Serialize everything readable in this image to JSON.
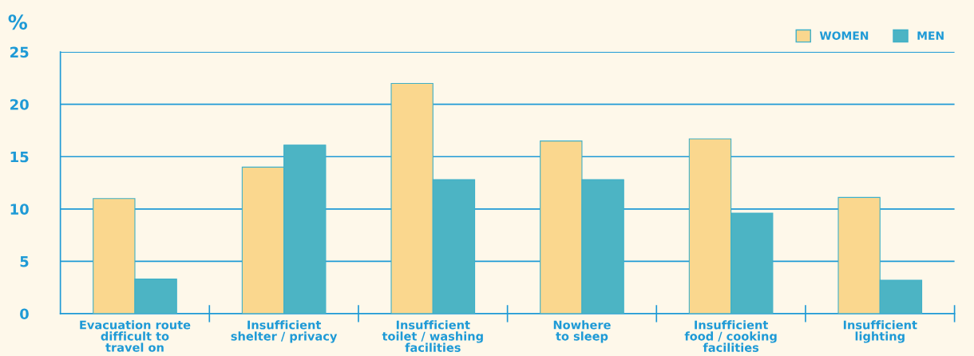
{
  "chart_data": {
    "type": "bar",
    "ylabel": "%",
    "categories": [
      "Evacuation route\ndifficult to\ntravel on",
      "Insufficient\nshelter / privacy",
      "Insufficient\ntoilet / washing\nfacilities",
      "Nowhere\nto sleep",
      "Insufficient\nfood / cooking\nfacilities",
      "Insufficient\nlighting"
    ],
    "series": [
      {
        "name": "WOMEN",
        "color": "#fad78e",
        "values": [
          11.0,
          14.0,
          22.0,
          16.5,
          16.7,
          11.1
        ]
      },
      {
        "name": "MEN",
        "color": "#4cb4c4",
        "values": [
          3.3,
          16.1,
          12.8,
          12.8,
          9.6,
          3.2
        ]
      }
    ],
    "ylim": [
      0,
      25
    ],
    "yticks": [
      0,
      5,
      10,
      15,
      20,
      25
    ],
    "grid": "y",
    "legend": "top right"
  }
}
